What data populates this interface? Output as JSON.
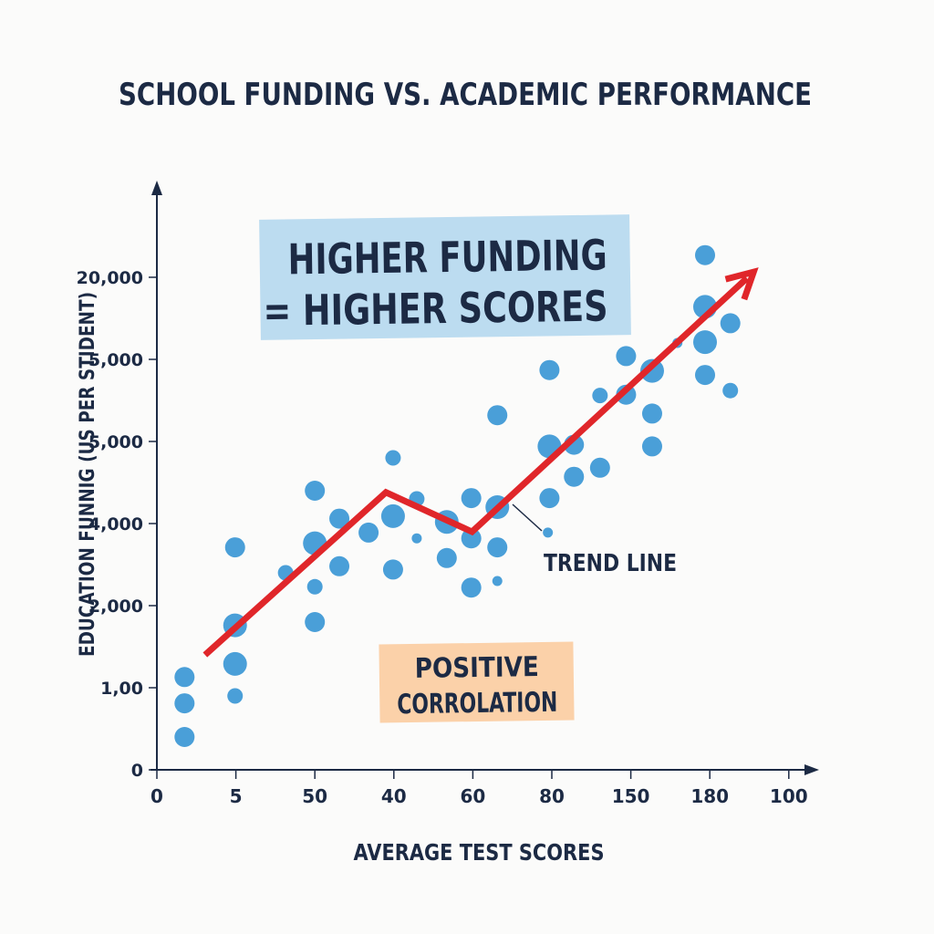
{
  "chart_data": {
    "type": "scatter",
    "title": "SCHOOL FUNDING VS. ACADEMIC PERFORMANCE",
    "xlabel": "AVERAGE TEST SCORES",
    "ylabel": "EDUCATION FUNNIG (US PER STIDENT)",
    "x_ticks": [
      "0",
      "5",
      "50",
      "40",
      "60",
      "80",
      "150",
      "180",
      "100"
    ],
    "y_ticks": [
      "0",
      "1,00",
      "2,000",
      "4,000",
      "5,000",
      "5,000",
      "20,000"
    ],
    "note": "Tick labels are not monotonic; point coordinates are given in tick-index units (x: 0-8, y: 0-6).",
    "grid": false,
    "colors": {
      "points": "#4a9fd8",
      "trend": "#e0262a",
      "text": "#1c2a44",
      "callout_blue": "#bcdcf0",
      "callout_orange": "#fbd1a9"
    },
    "points": [
      [
        0.35,
        1.13,
        2
      ],
      [
        0.35,
        0.81,
        2
      ],
      [
        0.35,
        0.4,
        2
      ],
      [
        0.99,
        2.71,
        2
      ],
      [
        0.99,
        1.76,
        3
      ],
      [
        0.99,
        1.29,
        3
      ],
      [
        0.99,
        0.9,
        1
      ],
      [
        1.63,
        2.4,
        1
      ],
      [
        2.0,
        3.4,
        2
      ],
      [
        2.0,
        2.76,
        3
      ],
      [
        2.0,
        2.23,
        1
      ],
      [
        2.0,
        1.8,
        2
      ],
      [
        2.31,
        3.06,
        2
      ],
      [
        2.31,
        2.48,
        2
      ],
      [
        2.68,
        2.89,
        2
      ],
      [
        2.99,
        3.8,
        1
      ],
      [
        2.99,
        3.09,
        3
      ],
      [
        2.99,
        2.44,
        2
      ],
      [
        3.29,
        3.3,
        1
      ],
      [
        3.29,
        2.82,
        0
      ],
      [
        3.67,
        3.02,
        3
      ],
      [
        3.67,
        2.58,
        2
      ],
      [
        3.98,
        3.31,
        2
      ],
      [
        3.98,
        2.82,
        2
      ],
      [
        3.98,
        2.22,
        2
      ],
      [
        4.31,
        4.32,
        2
      ],
      [
        4.31,
        3.2,
        3
      ],
      [
        4.31,
        2.71,
        2
      ],
      [
        4.31,
        2.3,
        0
      ],
      [
        4.97,
        4.87,
        2
      ],
      [
        4.97,
        3.94,
        3
      ],
      [
        4.97,
        3.31,
        2
      ],
      [
        4.95,
        2.89,
        0
      ],
      [
        5.28,
        3.96,
        2
      ],
      [
        5.28,
        3.57,
        2
      ],
      [
        5.61,
        4.56,
        1
      ],
      [
        5.61,
        3.68,
        2
      ],
      [
        5.94,
        5.04,
        2
      ],
      [
        5.94,
        4.57,
        2
      ],
      [
        6.27,
        4.86,
        3
      ],
      [
        6.27,
        4.34,
        2
      ],
      [
        6.27,
        3.94,
        2
      ],
      [
        6.59,
        5.2,
        0
      ],
      [
        6.94,
        6.27,
        2
      ],
      [
        6.94,
        5.64,
        3
      ],
      [
        6.94,
        5.21,
        3
      ],
      [
        6.94,
        4.81,
        2
      ],
      [
        7.26,
        5.44,
        2
      ],
      [
        7.26,
        4.62,
        1
      ]
    ],
    "trend_line": {
      "label": "TREND LINE",
      "points": [
        [
          0.61,
          1.4
        ],
        [
          2.9,
          3.38
        ],
        [
          3.99,
          2.9
        ],
        [
          7.47,
          5.99
        ]
      ]
    },
    "annotations": {
      "headline": [
        "HIGHER FUNDING",
        "= HIGHER SCORES"
      ],
      "correlation": [
        "POSITIVE",
        "CORROLATION"
      ]
    }
  }
}
